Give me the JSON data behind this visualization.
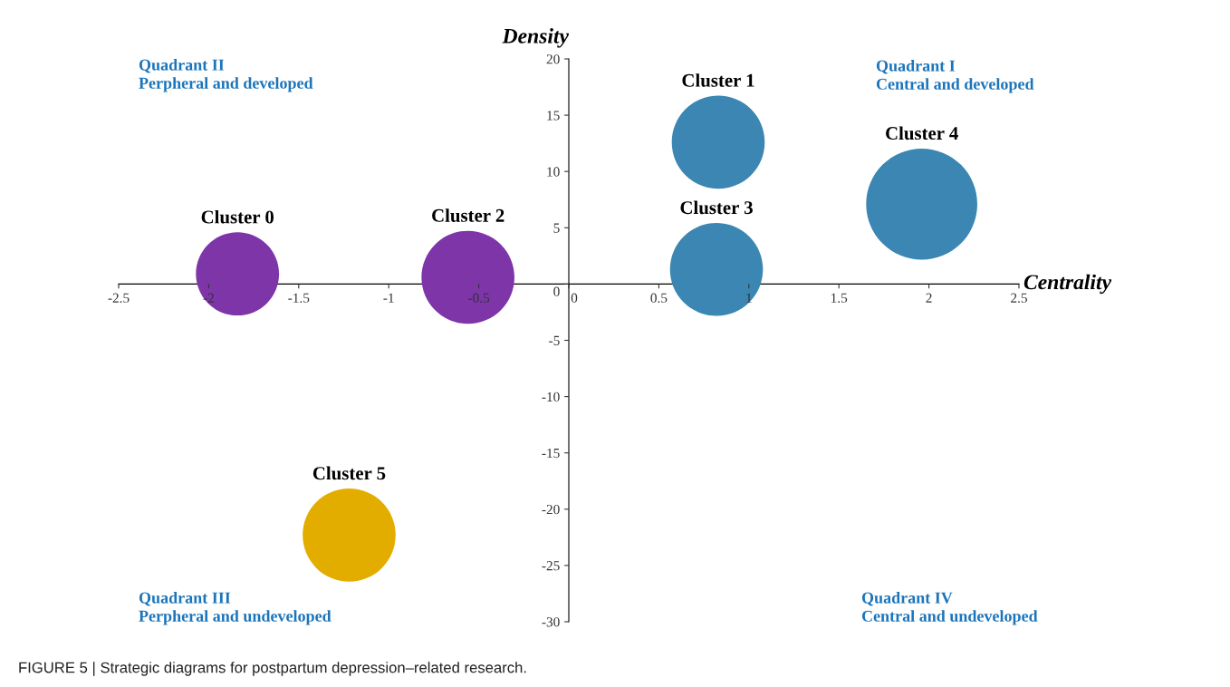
{
  "chart_data": {
    "type": "bubble",
    "xlabel": "Centrality",
    "ylabel": "Density",
    "series": [
      {
        "name": "Cluster 0",
        "color": "#7d35a8",
        "x": [
          -1.84
        ],
        "values": [
          0.9
        ],
        "sizes": [
          0.56
        ]
      },
      {
        "name": "Cluster 1",
        "color": "#3b86b2",
        "x": [
          0.83
        ],
        "values": [
          12.6
        ],
        "sizes": [
          0.7
        ]
      },
      {
        "name": "Cluster 2",
        "color": "#7d35a8",
        "x": [
          -0.56
        ],
        "values": [
          0.6
        ],
        "sizes": [
          0.7
        ]
      },
      {
        "name": "Cluster 3",
        "color": "#3b86b2",
        "x": [
          0.82
        ],
        "values": [
          1.3
        ],
        "sizes": [
          0.7
        ]
      },
      {
        "name": "Cluster 4",
        "color": "#3b86b2",
        "x": [
          1.96
        ],
        "values": [
          7.1
        ],
        "sizes": [
          1
        ]
      },
      {
        "name": "Cluster 5",
        "color": "#e3ad00",
        "x": [
          -1.22
        ],
        "values": [
          -22.3
        ],
        "sizes": [
          0.7
        ]
      }
    ],
    "xlim": [
      -2.5,
      2.5
    ],
    "xticks": [
      -2.5,
      -2,
      -1.5,
      -1,
      -0.5,
      0,
      0.5,
      1,
      1.5,
      2,
      2.5
    ],
    "ylim": [
      -30,
      20
    ],
    "yticks": [
      -30,
      -25,
      -20,
      -15,
      -10,
      -5,
      0,
      5,
      10,
      15,
      20
    ],
    "grid": false,
    "legend": false,
    "annotations": [
      "Quadrant II\nPerpheral and developed",
      "Quadrant I\nCentral and developed",
      "Quadrant III\nPerpheral and undeveloped",
      "Quadrant IV\nCentral and undeveloped",
      "FIGURE 5 | Strategic diagrams for postpartum depression–related research."
    ]
  }
}
